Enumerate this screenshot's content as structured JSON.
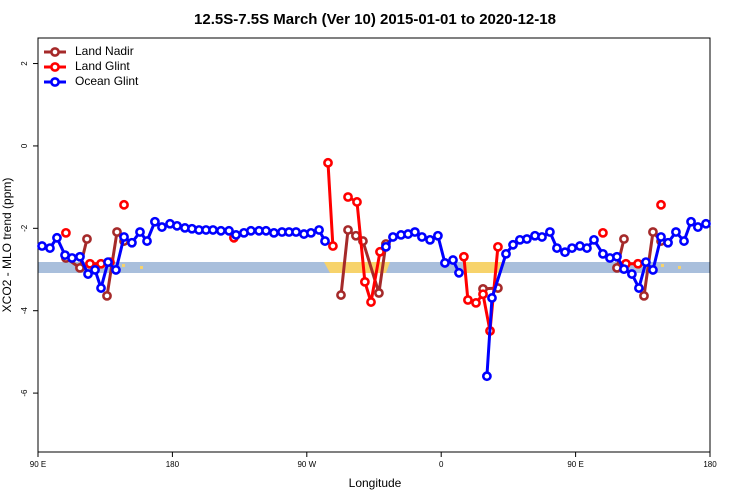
{
  "chart_data": {
    "type": "line",
    "title": "12.5S-7.5S March (Ver 10)   2015-01-01 to 2020-12-18",
    "x_label": "Longitude",
    "y_label": "XCO2 - MLO trend (ppm)",
    "xlim": [
      90,
      540
    ],
    "ylim": [
      -7.43,
      2.62
    ],
    "xticks": [
      {
        "value": 90,
        "label": "90 E"
      },
      {
        "value": 180,
        "label": "180"
      },
      {
        "value": 270,
        "label": "90 W"
      },
      {
        "value": 360,
        "label": "0"
      },
      {
        "value": 450,
        "label": "90 E"
      },
      {
        "value": 540,
        "label": "180"
      }
    ],
    "yticks": [
      2,
      0,
      -2,
      -4,
      -6
    ],
    "grid": false,
    "legend": "top-left",
    "series": [
      {
        "name": "Land Nadir",
        "color": "#a52a2a",
        "x": [
          108.7,
          118.1,
          122.8,
          null,
          136.2,
          142.9,
          147.6,
          null,
          292.9,
          297.6,
          302.9,
          307.6,
          318.3,
          323.0,
          null,
          388.0,
          398.0,
          null,
          477.7,
          482.4,
          null,
          495.8,
          501.8,
          507.2
        ],
        "values": [
          -2.72,
          -2.96,
          -2.26,
          null,
          -3.64,
          -2.09,
          -2.31,
          null,
          -3.62,
          -2.04,
          -2.18,
          -2.31,
          -3.57,
          -2.38,
          null,
          -3.47,
          -3.45,
          null,
          -2.96,
          -2.26,
          null,
          -3.64,
          -2.09,
          -2.31
        ]
      },
      {
        "name": "Land Glint",
        "color": "#ff0000",
        "x": [
          108.7,
          null,
          124.8,
          132.2,
          138.2,
          null,
          147.6,
          null,
          221.2,
          null,
          284.2,
          287.5,
          null,
          297.6,
          303.6,
          308.9,
          313.0,
          319.0,
          null,
          375.2,
          377.9,
          383.3,
          388.0,
          392.7,
          398.0,
          null,
          468.3,
          null,
          483.7,
          491.8,
          null,
          507.2
        ],
        "values": [
          -2.11,
          null,
          -2.86,
          -2.86,
          -2.82,
          null,
          -1.43,
          null,
          -2.23,
          null,
          -0.41,
          -2.43,
          null,
          -1.24,
          -1.36,
          -3.3,
          -3.79,
          -2.57,
          null,
          -2.69,
          -3.74,
          -3.81,
          -3.6,
          -4.49,
          -2.45,
          null,
          -2.11,
          null,
          -2.86,
          -2.86,
          null,
          -1.43
        ]
      },
      {
        "name": "Ocean Glint",
        "color": "#0000ff",
        "x": [
          92.7,
          98.0,
          102.7,
          108.1,
          112.8,
          118.1,
          123.5,
          128.2,
          132.2,
          136.9,
          142.2,
          147.6,
          152.9,
          158.3,
          163.0,
          168.3,
          173.0,
          178.4,
          183.1,
          188.4,
          193.1,
          197.8,
          202.5,
          207.2,
          212.5,
          217.9,
          222.6,
          227.9,
          232.6,
          238.0,
          242.7,
          248.0,
          253.4,
          258.1,
          262.8,
          268.1,
          272.8,
          278.2,
          282.2,
          null,
          323.0,
          327.7,
          333.1,
          337.8,
          342.4,
          347.1,
          352.5,
          357.8,
          362.5,
          367.9,
          371.9,
          null,
          390.6,
          394.0,
          403.4,
          408.1,
          412.7,
          417.4,
          422.8,
          427.5,
          432.8,
          437.5,
          442.9,
          447.6,
          452.9,
          457.6,
          462.3,
          468.3,
          473.0,
          477.7,
          482.4,
          487.7,
          492.4,
          497.1,
          501.8,
          507.2,
          511.9,
          517.2,
          522.6,
          527.3,
          531.9,
          537.3
        ],
        "values": [
          -2.43,
          -2.48,
          -2.23,
          -2.65,
          -2.72,
          -2.69,
          -3.11,
          -3.01,
          -3.45,
          -2.82,
          -3.01,
          -2.21,
          -2.35,
          -2.09,
          -2.31,
          -1.84,
          -1.97,
          -1.89,
          -1.94,
          -1.99,
          -2.01,
          -2.04,
          -2.04,
          -2.04,
          -2.06,
          -2.06,
          -2.16,
          -2.11,
          -2.06,
          -2.06,
          -2.06,
          -2.11,
          -2.09,
          -2.09,
          -2.09,
          -2.14,
          -2.11,
          -2.04,
          -2.31,
          null,
          -2.45,
          -2.21,
          -2.16,
          -2.14,
          -2.09,
          -2.21,
          -2.28,
          -2.18,
          -2.84,
          -2.77,
          -3.08,
          null,
          -5.59,
          -3.69,
          -2.62,
          -2.4,
          -2.28,
          -2.26,
          -2.18,
          -2.21,
          -2.09,
          -2.48,
          -2.58,
          -2.48,
          -2.43,
          -2.48,
          -2.28,
          -2.62,
          -2.72,
          -2.69,
          -2.99,
          -3.11,
          -3.45,
          -2.82,
          -3.01,
          -2.21,
          -2.35,
          -2.09,
          -2.31,
          -1.84,
          -1.97,
          -1.89
        ]
      }
    ]
  }
}
